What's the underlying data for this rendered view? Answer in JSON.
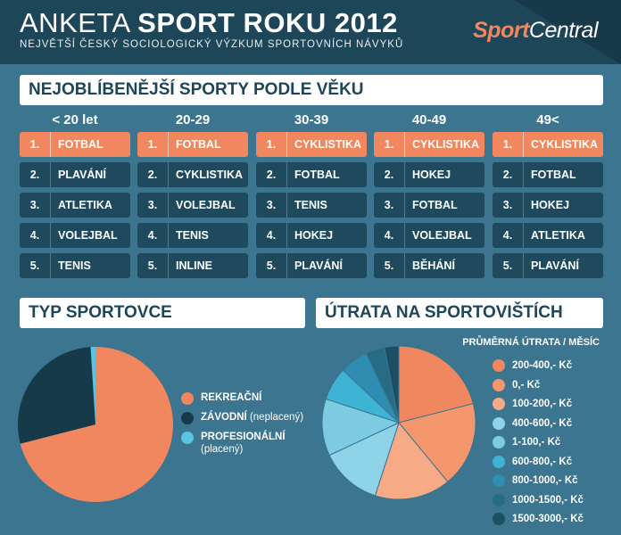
{
  "header": {
    "title_light": "ANKETA ",
    "title_bold": "SPORT ROKU 2012",
    "subtitle": "NEJVĚTŠÍ ČESKÝ SOCIOLOGICKÝ VÝZKUM SPORTOVNÍCH NÁVYKŮ",
    "logo_a": "Sport",
    "logo_b": "Central"
  },
  "section1": {
    "title": "NEJOBLÍBENĚJŠÍ SPORTY PODLE VĚKU",
    "groups": [
      {
        "age": "< 20 let",
        "ranks": [
          {
            "n": "1.",
            "s": "FOTBAL"
          },
          {
            "n": "2.",
            "s": "PLAVÁNÍ"
          },
          {
            "n": "3.",
            "s": "ATLETIKA"
          },
          {
            "n": "4.",
            "s": "VOLEJBAL"
          },
          {
            "n": "5.",
            "s": "TENIS"
          }
        ]
      },
      {
        "age": "20-29",
        "ranks": [
          {
            "n": "1.",
            "s": "FOTBAL"
          },
          {
            "n": "2.",
            "s": "CYKLISTIKA"
          },
          {
            "n": "3.",
            "s": "VOLEJBAL"
          },
          {
            "n": "4.",
            "s": "TENIS"
          },
          {
            "n": "5.",
            "s": "INLINE"
          }
        ]
      },
      {
        "age": "30-39",
        "ranks": [
          {
            "n": "1.",
            "s": "CYKLISTIKA"
          },
          {
            "n": "2.",
            "s": "FOTBAL"
          },
          {
            "n": "3.",
            "s": "TENIS"
          },
          {
            "n": "4.",
            "s": "HOKEJ"
          },
          {
            "n": "5.",
            "s": "PLAVÁNÍ"
          }
        ]
      },
      {
        "age": "40-49",
        "ranks": [
          {
            "n": "1.",
            "s": "CYKLISTIKA"
          },
          {
            "n": "2.",
            "s": "HOKEJ"
          },
          {
            "n": "3.",
            "s": "FOTBAL"
          },
          {
            "n": "4.",
            "s": "VOLEJBAL"
          },
          {
            "n": "5.",
            "s": "BĚHÁNÍ"
          }
        ]
      },
      {
        "age": "49<",
        "ranks": [
          {
            "n": "1.",
            "s": "CYKLISTIKA"
          },
          {
            "n": "2.",
            "s": "FOTBAL"
          },
          {
            "n": "3.",
            "s": "HOKEJ"
          },
          {
            "n": "4.",
            "s": "ATLETIKA"
          },
          {
            "n": "5.",
            "s": "PLAVÁNÍ"
          }
        ]
      }
    ]
  },
  "section2": {
    "title": "TYP SPORTOVCE",
    "legend": [
      {
        "label": "REKREAČNÍ",
        "sub": "",
        "color": "#f0875f"
      },
      {
        "label": "ZÁVODNÍ",
        "sub": " (neplacený)",
        "color": "#173a4b"
      },
      {
        "label": "PROFESIONÁLNÍ",
        "sub": "(placený)",
        "color": "#5bc4e0"
      }
    ]
  },
  "section3": {
    "title": "ÚTRATA NA SPORTOVIŠTÍCH",
    "legend_title": "PRŮMĚRNÁ ÚTRATA / MĚSÍC",
    "legend": [
      {
        "label": "200-400,- Kč",
        "color": "#f0875f"
      },
      {
        "label": "0,- Kč",
        "color": "#f5976c"
      },
      {
        "label": "100-200,- Kč",
        "color": "#f6aa86"
      },
      {
        "label": "400-600,- Kč",
        "color": "#8fd3e8"
      },
      {
        "label": "1-100,- Kč",
        "color": "#7ccbe3"
      },
      {
        "label": "600-800,- Kč",
        "color": "#3eb3d3"
      },
      {
        "label": "800-1000,- Kč",
        "color": "#2e8db0"
      },
      {
        "label": "1000-1500,- Kč",
        "color": "#276b85"
      },
      {
        "label": "1500-3000,- Kč",
        "color": "#1c4f63"
      }
    ]
  },
  "chart_data": [
    {
      "type": "pie",
      "title": "TYP SPORTOVCE",
      "categories": [
        "REKREAČNÍ",
        "ZÁVODNÍ (neplacený)",
        "PROFESIONÁLNÍ (placený)"
      ],
      "values": [
        71,
        28,
        1
      ]
    },
    {
      "type": "pie",
      "title": "ÚTRATA NA SPORTOVIŠTÍCH",
      "categories": [
        "200-400,- Kč",
        "0,- Kč",
        "100-200,- Kč",
        "400-600,- Kč",
        "1-100,- Kč",
        "600-800,- Kč",
        "800-1000,- Kč",
        "1000-1500,- Kč",
        "1500-3000,- Kč"
      ],
      "values": [
        21,
        18,
        16,
        13,
        12,
        7,
        6,
        4,
        3
      ]
    }
  ]
}
